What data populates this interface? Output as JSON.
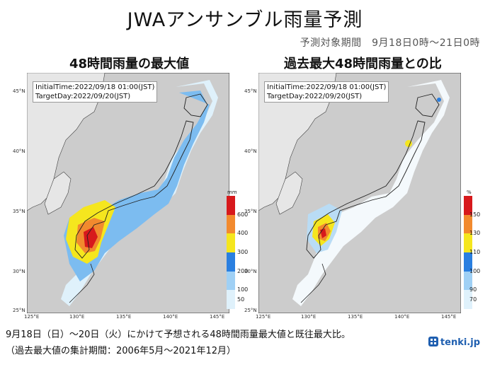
{
  "title": "JWAアンサンブル雨量予測",
  "period": "予測対象期間　9月18日0時～21日0時",
  "panels": [
    {
      "title": "48時間雨量の最大値",
      "initial_time": "InitialTime:2022/09/18 01:00(JST)",
      "target_day": "TargetDay:2022/09/20(JST)",
      "colorbar_unit": "mm",
      "colorbar_labels": [
        "600",
        "400",
        "300",
        "200",
        "100",
        "50"
      ],
      "colorbar_colors": [
        "#d7191c",
        "#f28a2e",
        "#f5e61e",
        "#2a7fe0",
        "#9fd0f5",
        "#dff1fb"
      ]
    },
    {
      "title": "過去最大48時間雨量との比",
      "initial_time": "InitialTime:2022/09/18 01:00(JST)",
      "target_day": "TargetDay:2022/09/20(JST)",
      "colorbar_unit": "%",
      "colorbar_labels": [
        "150",
        "130",
        "110",
        "100",
        "90",
        "70"
      ],
      "colorbar_colors": [
        "#d7191c",
        "#f28a2e",
        "#f5e61e",
        "#2a7fe0",
        "#9fd0f5",
        "#dff1fb"
      ]
    }
  ],
  "axes": {
    "lat_labels": [
      "45°N",
      "40°N",
      "35°N",
      "30°N",
      "25°N"
    ],
    "lon_labels": [
      "125°E",
      "130°E",
      "135°E",
      "140°E",
      "145°E"
    ]
  },
  "caption_1": "9月18日（日）～20日（火）にかけて予想される48時間雨量最大値と既往最大比。",
  "caption_2": "（過去最大値の集計期間：2006年5月～2021年12月）",
  "logo_text": "tenki.jp",
  "colors": {
    "sea_land_bg": "#cfcfcf",
    "land": "#ffffff",
    "accent": "#1f5fb0"
  }
}
